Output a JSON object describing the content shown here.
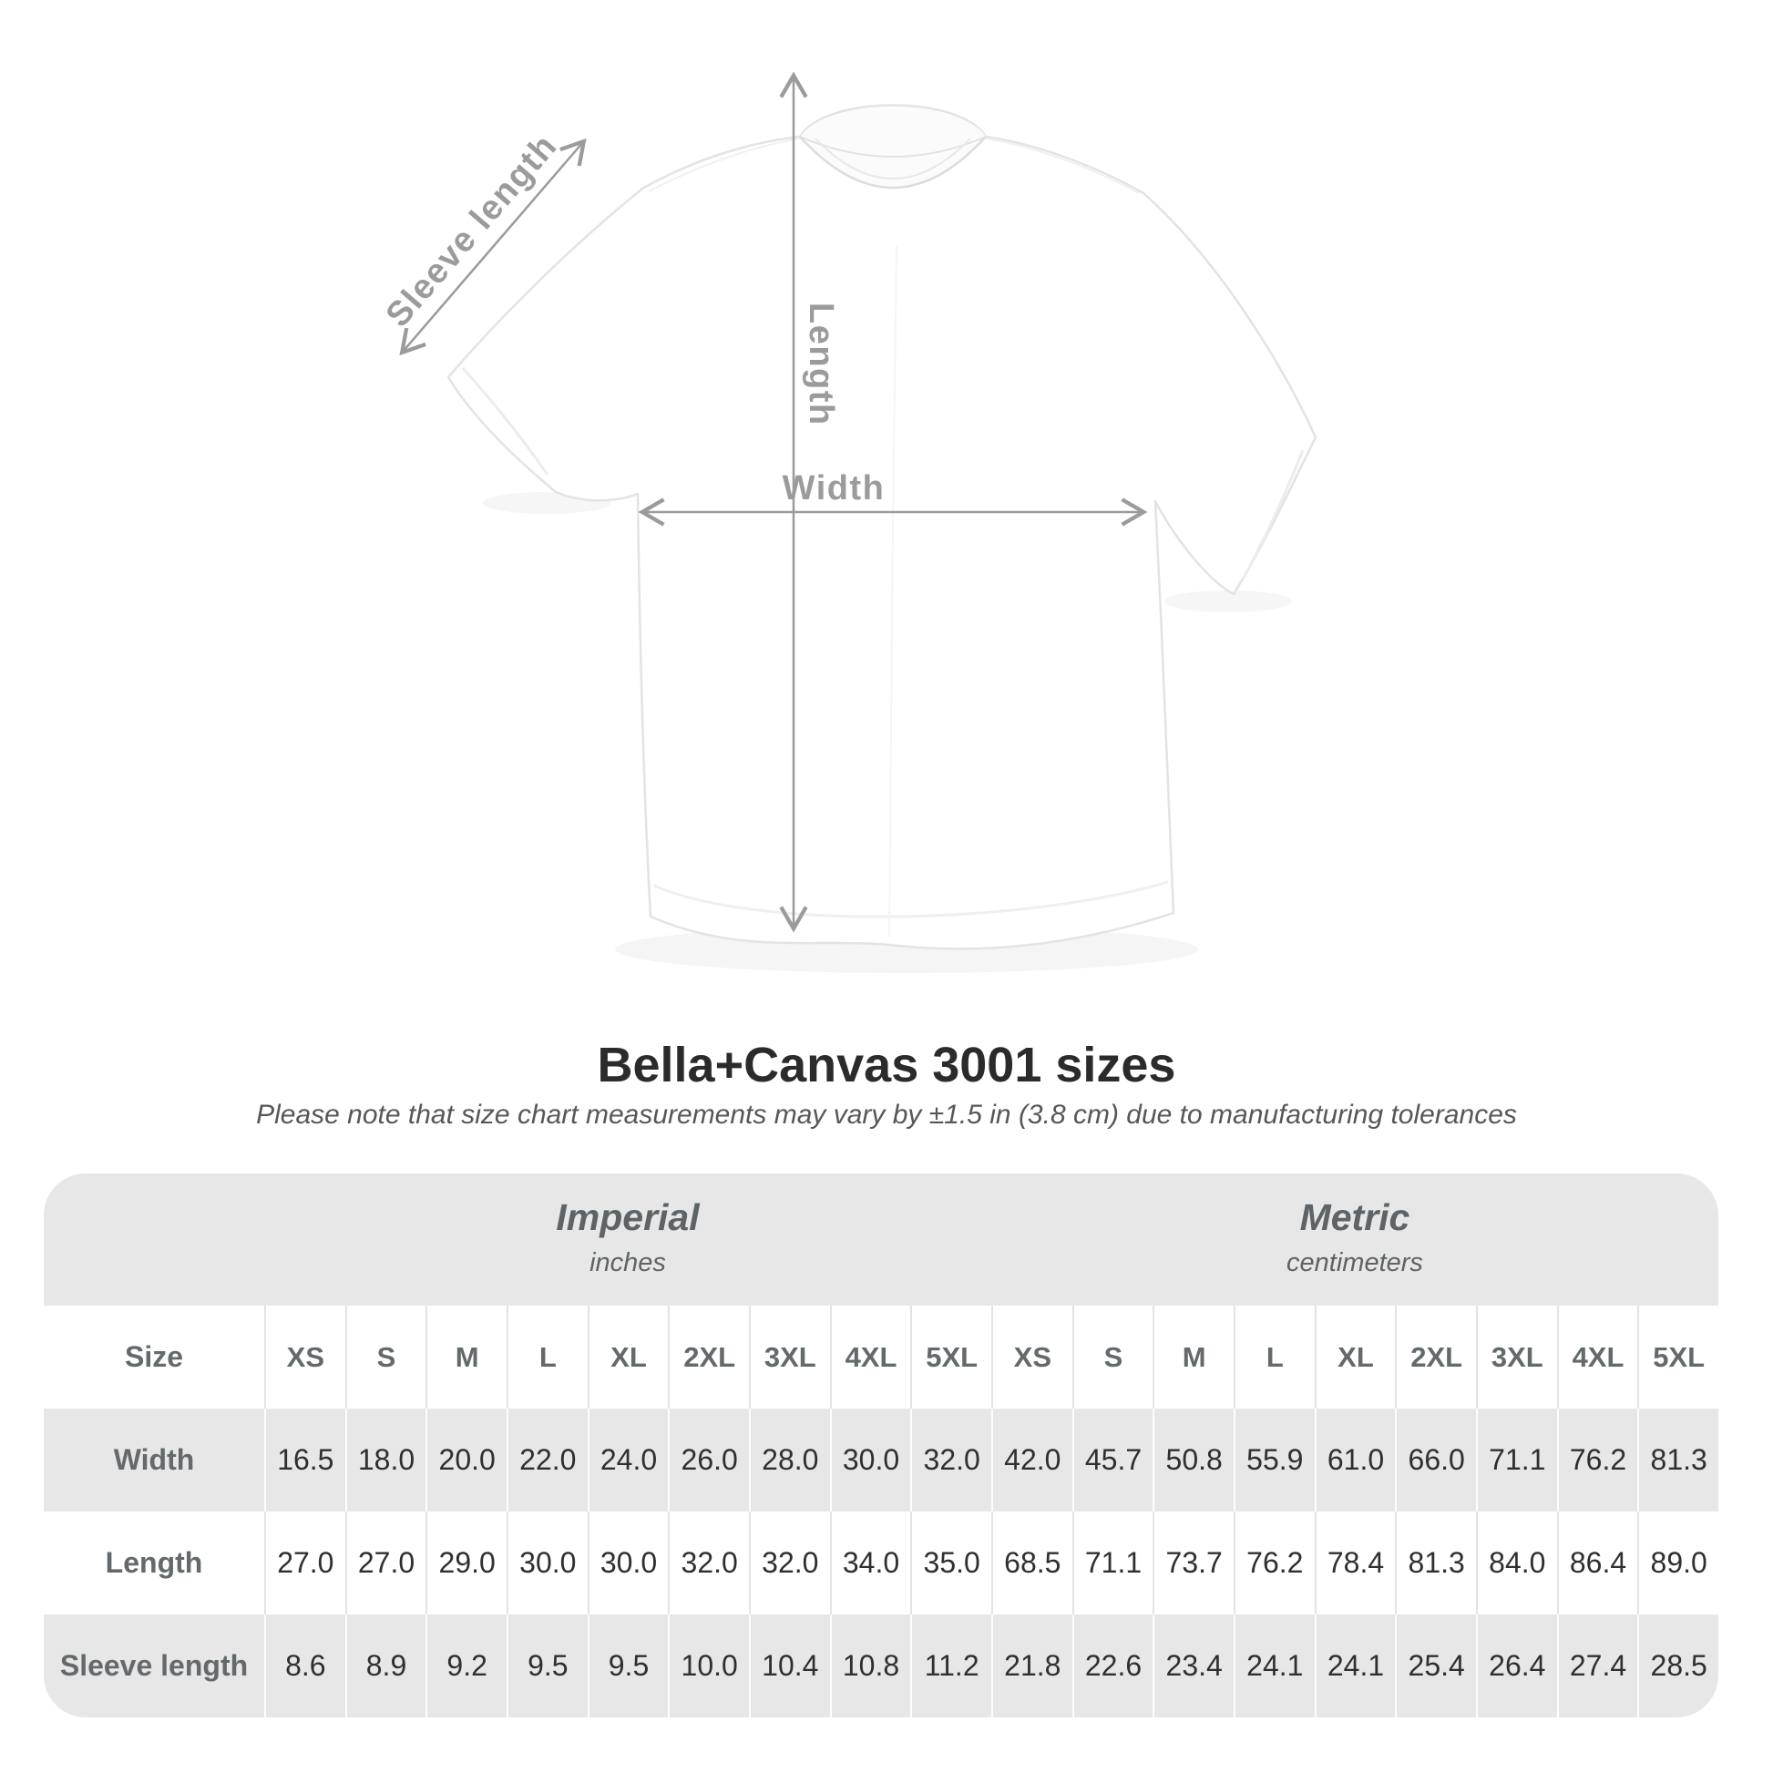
{
  "header": {
    "title": "Bella+Canvas 3001 sizes",
    "subtitle": "Please note that size chart measurements may vary by ±1.5 in (3.8 cm) due to manufacturing tolerances"
  },
  "diagram": {
    "labels": {
      "length": "Length",
      "width": "Width",
      "sleeve": "Sleeve length"
    },
    "arrow_color": "#9b9b9b"
  },
  "table": {
    "corner_label": "Size",
    "groups": [
      {
        "label": "Imperial",
        "sublabel": "inches"
      },
      {
        "label": "Metric",
        "sublabel": "centimeters"
      }
    ],
    "sizes": [
      "XS",
      "S",
      "M",
      "L",
      "XL",
      "2XL",
      "3XL",
      "4XL",
      "5XL"
    ],
    "rows": [
      {
        "label": "Width",
        "imperial": [
          "16.5",
          "18.0",
          "20.0",
          "22.0",
          "24.0",
          "26.0",
          "28.0",
          "30.0",
          "32.0"
        ],
        "metric": [
          "42.0",
          "45.7",
          "50.8",
          "55.9",
          "61.0",
          "66.0",
          "71.1",
          "76.2",
          "81.3"
        ]
      },
      {
        "label": "Length",
        "imperial": [
          "27.0",
          "27.0",
          "29.0",
          "30.0",
          "30.0",
          "32.0",
          "32.0",
          "34.0",
          "35.0"
        ],
        "metric": [
          "68.5",
          "71.1",
          "73.7",
          "76.2",
          "78.4",
          "81.3",
          "84.0",
          "86.4",
          "89.0"
        ]
      },
      {
        "label": "Sleeve length",
        "imperial": [
          "8.6",
          "8.9",
          "9.2",
          "9.5",
          "9.5",
          "10.0",
          "10.4",
          "10.8",
          "11.2"
        ],
        "metric": [
          "21.8",
          "22.6",
          "23.4",
          "24.1",
          "24.1",
          "25.4",
          "26.4",
          "27.4",
          "28.5"
        ]
      }
    ],
    "colors": {
      "band": "#e8e7e7",
      "header_text": "#64696c",
      "value_text": "#2f2f2f"
    }
  },
  "chart_data": {
    "type": "table",
    "title": "Bella+Canvas 3001 sizes",
    "subtitle": "Please note that size chart measurements may vary by ±1.5 in (3.8 cm) due to manufacturing tolerances",
    "column_groups": [
      "Imperial (inches)",
      "Metric (centimeters)"
    ],
    "sizes": [
      "XS",
      "S",
      "M",
      "L",
      "XL",
      "2XL",
      "3XL",
      "4XL",
      "5XL"
    ],
    "rows": [
      {
        "measure": "Width",
        "imperial_in": [
          16.5,
          18.0,
          20.0,
          22.0,
          24.0,
          26.0,
          28.0,
          30.0,
          32.0
        ],
        "metric_cm": [
          42.0,
          45.7,
          50.8,
          55.9,
          61.0,
          66.0,
          71.1,
          76.2,
          81.3
        ]
      },
      {
        "measure": "Length",
        "imperial_in": [
          27.0,
          27.0,
          29.0,
          30.0,
          30.0,
          32.0,
          32.0,
          34.0,
          35.0
        ],
        "metric_cm": [
          68.5,
          71.1,
          73.7,
          76.2,
          78.4,
          81.3,
          84.0,
          86.4,
          89.0
        ]
      },
      {
        "measure": "Sleeve length",
        "imperial_in": [
          8.6,
          8.9,
          9.2,
          9.5,
          9.5,
          10.0,
          10.4,
          10.8,
          11.2
        ],
        "metric_cm": [
          21.8,
          22.6,
          23.4,
          24.1,
          24.1,
          25.4,
          26.4,
          27.4,
          28.5
        ]
      }
    ]
  }
}
